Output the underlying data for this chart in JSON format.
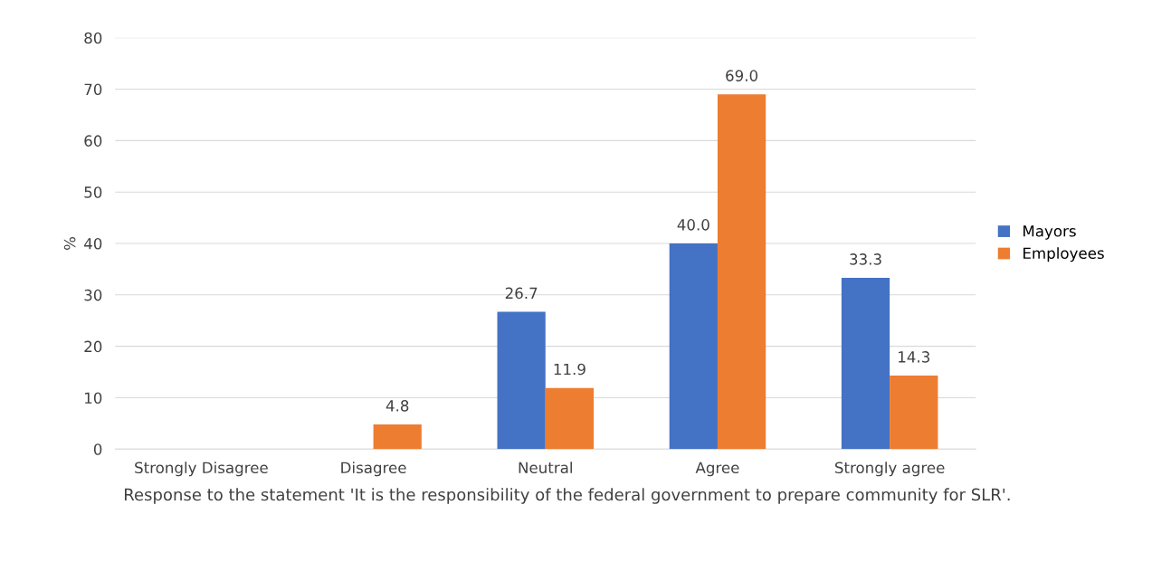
{
  "chart_data": {
    "type": "bar",
    "xlabel": "Response to the statement 'It is the responsibility of the federal government to prepare community for SLR'.",
    "ylabel": "%",
    "categories": [
      "Strongly Disagree",
      "Disagree",
      "Neutral",
      "Agree",
      "Strongly agree"
    ],
    "series": [
      {
        "name": "Mayors",
        "color": "#4472c4",
        "values": [
          null,
          null,
          26.7,
          40.0,
          33.3
        ],
        "value_labels": [
          null,
          null,
          "26.7",
          "40.0",
          "33.3"
        ]
      },
      {
        "name": "Employees",
        "color": "#ed7d31",
        "values": [
          null,
          4.8,
          11.9,
          69.0,
          14.3
        ],
        "value_labels": [
          null,
          "4.8",
          "11.9",
          "69.0",
          "14.3"
        ]
      }
    ],
    "ylim": [
      0,
      80
    ],
    "yticks": [
      0,
      10,
      20,
      30,
      40,
      50,
      60,
      70,
      80
    ],
    "grid": "y",
    "legend": "right"
  }
}
